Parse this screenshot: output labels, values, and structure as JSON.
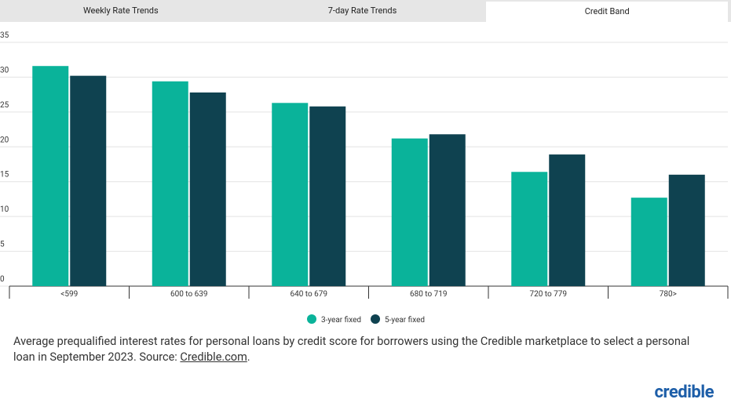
{
  "tabs": [
    "Weekly Rate Trends",
    "7-day Rate Trends",
    "Credit Band"
  ],
  "active_tab": 2,
  "chart_data": {
    "type": "bar",
    "categories": [
      "<599",
      "600 to 639",
      "640 to 679",
      "680 to 719",
      "720 to 779",
      "780>"
    ],
    "series": [
      {
        "name": "3-year fixed",
        "color": "#0ab39a",
        "values": [
          31.6,
          29.4,
          26.3,
          21.2,
          16.4,
          12.7
        ]
      },
      {
        "name": "5-year fixed",
        "color": "#0f4250",
        "values": [
          30.2,
          27.8,
          25.8,
          21.8,
          18.9,
          16.0
        ]
      }
    ],
    "ylim": [
      0,
      35
    ],
    "yticks": [
      0,
      5,
      10,
      15,
      20,
      25,
      30,
      35
    ],
    "grid": true
  },
  "caption": {
    "text": "Average prequalified interest rates for personal loans by credit score for borrowers using the Credible marketplace to select a personal loan in September 2023. Source:",
    "link": "Credible.com",
    "end": "."
  },
  "logo": "credible"
}
